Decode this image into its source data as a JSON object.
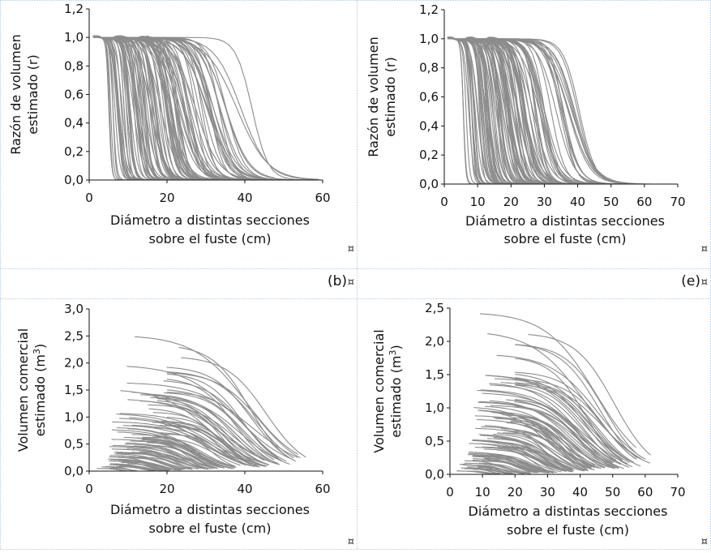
{
  "document": {
    "cell_marker": "¤",
    "panel_labels": [
      "(b)",
      "(e)"
    ]
  },
  "colors": {
    "curve": "#8c8c8c",
    "axis": "#111111",
    "cell_border": "#8fb3d9",
    "background": "#ffffff"
  },
  "chart_data": [
    {
      "type": "line",
      "ylabel_lines": [
        "Razón de volumen",
        "estimado (r)"
      ],
      "xlabel_lines": [
        "Diámetro a distintas secciones",
        "sobre el fuste (cm)"
      ],
      "xlim": [
        0,
        60
      ],
      "ylim": [
        0,
        1.2
      ],
      "xticks": [
        0,
        20,
        40,
        60
      ],
      "xtick_labels": [
        "0",
        "20",
        "40",
        "60"
      ],
      "yticks": [
        0,
        0.2,
        0.4,
        0.6,
        0.8,
        1.0,
        1.2
      ],
      "ytick_labels": [
        "0,0",
        "0,2",
        "0,4",
        "0,6",
        "0,8",
        "1,0",
        "1,2"
      ],
      "grid": false,
      "legend": false,
      "series_kind": "ratio",
      "curve_end_dbh": [
        8,
        10,
        11,
        12,
        13,
        14,
        15,
        16,
        17,
        18,
        19,
        20,
        21,
        22,
        23,
        24,
        25,
        26,
        27,
        28,
        29,
        30,
        31,
        32,
        33,
        34,
        35,
        36,
        37,
        38,
        40,
        42,
        44,
        46,
        48,
        50,
        52,
        55,
        58
      ],
      "curve_dbh": [
        4,
        5,
        6,
        8,
        10,
        12,
        14,
        16,
        18,
        20,
        22,
        24,
        26,
        28,
        30,
        32
      ]
    },
    {
      "type": "line",
      "ylabel_lines": [
        "Razón de volumen",
        "estimado (r)"
      ],
      "xlabel_lines": [
        "Diámetro a distintas secciones",
        "sobre el fuste (cm)"
      ],
      "xlim": [
        0,
        70
      ],
      "ylim": [
        0,
        1.2
      ],
      "xticks": [
        0,
        10,
        20,
        30,
        40,
        50,
        60,
        70
      ],
      "xtick_labels": [
        "0",
        "10",
        "20",
        "30",
        "40",
        "50",
        "60",
        "70"
      ],
      "yticks": [
        0,
        0.2,
        0.4,
        0.6,
        0.8,
        1.0,
        1.2
      ],
      "ytick_labels": [
        "0,0",
        "0,2",
        "0,4",
        "0,6",
        "0,8",
        "1,0",
        "1,2"
      ],
      "grid": false,
      "legend": false,
      "series_kind": "ratio",
      "curve_end_dbh": [
        10,
        12,
        13,
        14,
        15,
        16,
        17,
        18,
        19,
        20,
        21,
        22,
        23,
        24,
        25,
        26,
        27,
        28,
        29,
        30,
        31,
        32,
        33,
        34,
        35,
        36,
        37,
        38,
        39,
        40,
        42,
        44,
        46,
        48,
        50,
        52,
        55,
        58,
        60
      ],
      "curve_dbh": [
        4,
        5,
        6,
        8,
        10,
        12,
        14,
        16,
        18,
        20,
        22,
        24,
        26,
        28,
        30,
        32
      ]
    },
    {
      "type": "line",
      "ylabel_lines": [
        "Volumen comercial",
        "estimado (m³)"
      ],
      "xlabel_lines": [
        "Diámetro a distintas secciones",
        "sobre el fuste (cm)"
      ],
      "xlim": [
        0,
        60
      ],
      "ylim": [
        0,
        3.0
      ],
      "xticks": [
        0,
        20,
        40,
        60
      ],
      "xtick_labels": [
        "0",
        "20",
        "40",
        "60"
      ],
      "yticks": [
        0,
        0.5,
        1.0,
        1.5,
        2.0,
        2.5,
        3.0
      ],
      "ytick_labels": [
        "0,0",
        "0,5",
        "1,0",
        "1,5",
        "2,0",
        "2,5",
        "3,0"
      ],
      "grid": false,
      "legend": false,
      "series_kind": "volume",
      "curve_max_volume": [
        0.05,
        0.08,
        0.1,
        0.12,
        0.15,
        0.18,
        0.2,
        0.22,
        0.25,
        0.28,
        0.3,
        0.33,
        0.36,
        0.4,
        0.43,
        0.46,
        0.5,
        0.54,
        0.58,
        0.62,
        0.66,
        0.7,
        0.75,
        0.8,
        0.85,
        0.9,
        0.95,
        1.0,
        1.08,
        1.15,
        1.25,
        1.35,
        1.45,
        1.55,
        1.65,
        1.78,
        1.9,
        2.3
      ],
      "curve_end_dbh": [
        12,
        14,
        16,
        18,
        20,
        21,
        22,
        23,
        24,
        25,
        26,
        27,
        28,
        29,
        30,
        31,
        32,
        33,
        34,
        35,
        36,
        37,
        38,
        39,
        40,
        41,
        42,
        43,
        44,
        45,
        46,
        47,
        48,
        49,
        50,
        51,
        52,
        56
      ]
    },
    {
      "type": "line",
      "ylabel_lines": [
        "Volumen comercial",
        "estimado (m³)"
      ],
      "xlabel_lines": [
        "Diámetro a distintas secciones",
        "sobre el fuste (cm)"
      ],
      "xlim": [
        0,
        70
      ],
      "ylim": [
        0,
        2.5
      ],
      "xticks": [
        0,
        10,
        20,
        30,
        40,
        50,
        60,
        70
      ],
      "xtick_labels": [
        "0",
        "10",
        "20",
        "30",
        "40",
        "50",
        "60",
        "70"
      ],
      "yticks": [
        0,
        0.5,
        1.0,
        1.5,
        2.0,
        2.5
      ],
      "ytick_labels": [
        "0,0",
        "0,5",
        "1,0",
        "1,5",
        "2,0",
        "2,5"
      ],
      "grid": false,
      "legend": false,
      "series_kind": "volume",
      "curve_max_volume": [
        0.05,
        0.08,
        0.1,
        0.12,
        0.15,
        0.18,
        0.2,
        0.22,
        0.25,
        0.28,
        0.3,
        0.33,
        0.36,
        0.4,
        0.43,
        0.46,
        0.5,
        0.54,
        0.58,
        0.62,
        0.66,
        0.7,
        0.75,
        0.8,
        0.85,
        0.9,
        0.95,
        1.0,
        1.05,
        1.1,
        1.15,
        1.2,
        1.3,
        1.4,
        1.45,
        1.55,
        1.65,
        1.8,
        2.28
      ],
      "curve_end_dbh": [
        14,
        16,
        18,
        20,
        22,
        24,
        26,
        28,
        29,
        30,
        31,
        32,
        33,
        34,
        35,
        36,
        37,
        38,
        39,
        40,
        41,
        42,
        43,
        44,
        45,
        46,
        47,
        48,
        49,
        50,
        51,
        52,
        53,
        54,
        55,
        56,
        57,
        58,
        60
      ]
    }
  ]
}
